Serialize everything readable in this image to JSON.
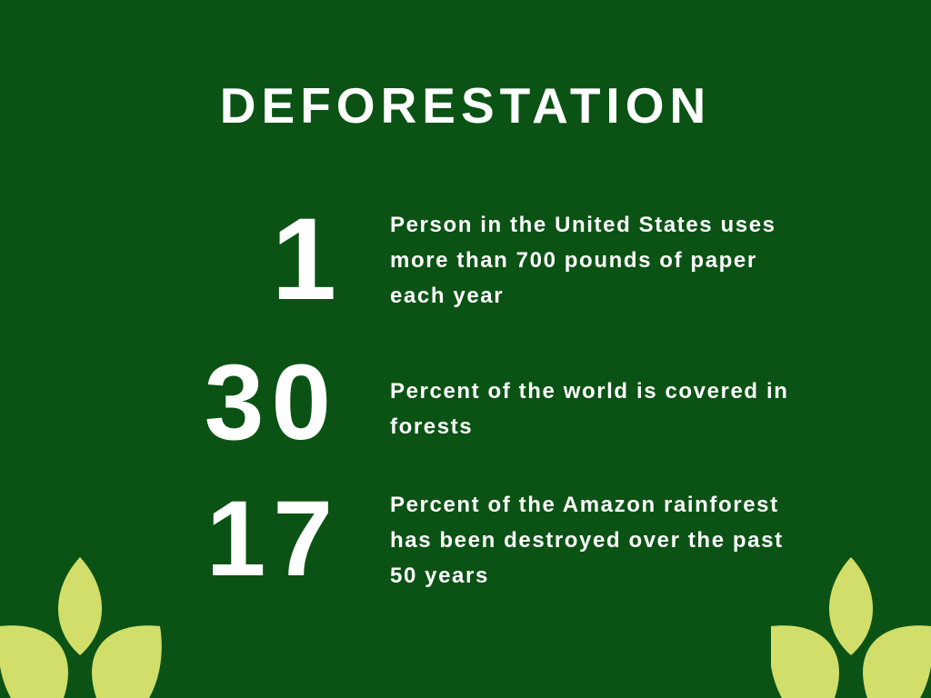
{
  "title": "DEFORESTATION",
  "stats": [
    {
      "number": "1",
      "text": "Person in the United States uses more than 700 pounds of paper each year"
    },
    {
      "number": "30",
      "text": "Percent of the world is covered in forests"
    },
    {
      "number": "17",
      "text": "Percent of the Amazon rainforest has been destroyed over the past 50 years"
    }
  ],
  "colors": {
    "background": "#0b5314",
    "text": "#ffffff",
    "leaf": "#d2de6a"
  },
  "decor": {
    "left_icon": "leaf-sprout-icon",
    "right_icon": "leaf-sprout-icon"
  }
}
